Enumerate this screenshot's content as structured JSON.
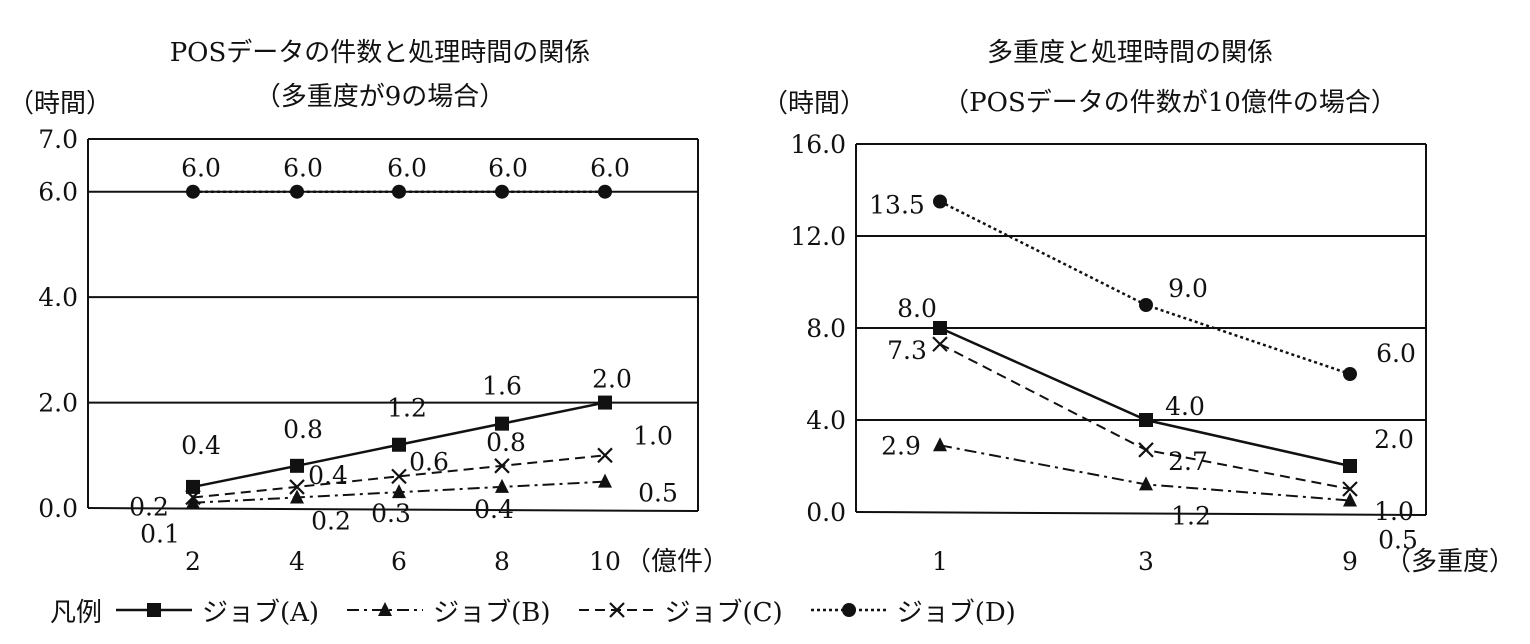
{
  "chart_data": [
    {
      "type": "line",
      "title": "POSデータの件数と処理時間の関係",
      "subtitle": "（多重度が9の場合）",
      "ylabel": "（時間）",
      "xunit": "（億件）",
      "ylim": [
        0,
        7
      ],
      "yticks": [
        "0.0",
        "2.0",
        "4.0",
        "6.0",
        "7.0"
      ],
      "ytick_values": [
        0,
        2,
        4,
        6,
        7
      ],
      "x": [
        2,
        4,
        6,
        8,
        10
      ],
      "xtick_labels": [
        "2",
        "4",
        "6",
        "8",
        "10"
      ],
      "grid": "horizontal",
      "series": [
        {
          "name": "ジョブ(A)",
          "values": [
            0.4,
            0.8,
            1.2,
            1.6,
            2.0
          ],
          "labels": [
            "0.4",
            "0.8",
            "1.2",
            "1.6",
            "2.0"
          ]
        },
        {
          "name": "ジョブ(B)",
          "values": [
            0.1,
            0.2,
            0.3,
            0.4,
            0.5
          ],
          "labels": [
            "0.1",
            "0.2",
            "0.3",
            "0.4",
            "0.5"
          ]
        },
        {
          "name": "ジョブ(C)",
          "values": [
            0.2,
            0.4,
            0.6,
            0.8,
            1.0
          ],
          "labels": [
            "0.2",
            "0.4",
            "0.6",
            "0.8",
            "1.0"
          ]
        },
        {
          "name": "ジョブ(D)",
          "values": [
            6.0,
            6.0,
            6.0,
            6.0,
            6.0
          ],
          "labels": [
            "6.0",
            "6.0",
            "6.0",
            "6.0",
            "6.0"
          ]
        }
      ]
    },
    {
      "type": "line",
      "title": "多重度と処理時間の関係",
      "subtitle": "（POSデータの件数が10億件の場合）",
      "ylabel": "（時間）",
      "xunit": "（多重度）",
      "ylim": [
        0,
        16
      ],
      "yticks": [
        "0.0",
        "4.0",
        "8.0",
        "12.0",
        "16.0"
      ],
      "ytick_values": [
        0,
        4,
        8,
        12,
        16
      ],
      "x": [
        1,
        3,
        9
      ],
      "xtick_labels": [
        "1",
        "3",
        "9"
      ],
      "grid": "horizontal",
      "series": [
        {
          "name": "ジョブ(A)",
          "values": [
            8.0,
            4.0,
            2.0
          ],
          "labels": [
            "8.0",
            "4.0",
            "2.0"
          ]
        },
        {
          "name": "ジョブ(B)",
          "values": [
            2.9,
            1.2,
            0.5
          ],
          "labels": [
            "2.9",
            "1.2",
            "0.5"
          ]
        },
        {
          "name": "ジョブ(C)",
          "values": [
            7.3,
            2.7,
            1.0
          ],
          "labels": [
            "7.3",
            "2.7",
            "1.0"
          ]
        },
        {
          "name": "ジョブ(D)",
          "values": [
            13.5,
            9.0,
            6.0
          ],
          "labels": [
            "13.5",
            "9.0",
            "6.0"
          ]
        }
      ]
    }
  ],
  "legend": {
    "title": "凡例",
    "items": [
      {
        "label": "ジョブ(A)",
        "marker": "square",
        "line": "solid"
      },
      {
        "label": "ジョブ(B)",
        "marker": "triangle",
        "line": "dashdot"
      },
      {
        "label": "ジョブ(C)",
        "marker": "cross",
        "line": "dashed"
      },
      {
        "label": "ジョブ(D)",
        "marker": "circle",
        "line": "dotted"
      }
    ]
  },
  "colors": {
    "ink": "#111111",
    "background": "#ffffff"
  }
}
